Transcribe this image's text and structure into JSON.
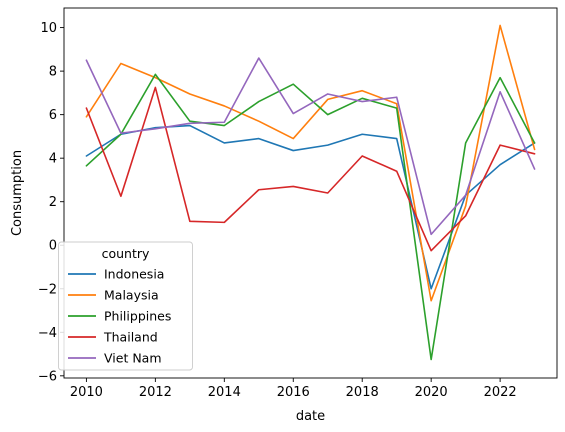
{
  "chart_data": {
    "type": "line",
    "xlabel": "date",
    "ylabel": "Consumption",
    "xlim": [
      2009.35,
      2023.65
    ],
    "ylim": [
      -6.1,
      10.9
    ],
    "x_ticks": [
      2010,
      2012,
      2014,
      2016,
      2018,
      2020,
      2022
    ],
    "y_ticks": [
      -6,
      -4,
      -2,
      0,
      2,
      4,
      6,
      8,
      10
    ],
    "grid": false,
    "legend": {
      "title": "country",
      "placement": "lower-left"
    },
    "x": [
      2010,
      2011,
      2012,
      2013,
      2014,
      2015,
      2016,
      2017,
      2018,
      2019,
      2020,
      2021,
      2022,
      2023
    ],
    "series": [
      {
        "name": "Indonesia",
        "color": "#1f77b4",
        "values": [
          4.1,
          5.1,
          5.4,
          5.5,
          4.7,
          4.9,
          4.35,
          4.6,
          5.1,
          4.9,
          -2.0,
          2.3,
          3.7,
          4.7
        ]
      },
      {
        "name": "Malaysia",
        "color": "#ff7f0e",
        "values": [
          5.9,
          8.35,
          7.7,
          6.95,
          6.4,
          5.7,
          4.9,
          6.7,
          7.1,
          6.5,
          -2.55,
          1.8,
          10.1,
          4.4
        ]
      },
      {
        "name": "Philippines",
        "color": "#2ca02c",
        "values": [
          3.65,
          5.1,
          7.85,
          5.7,
          5.5,
          6.6,
          7.4,
          6.0,
          6.75,
          6.3,
          -5.25,
          4.7,
          7.7,
          4.7
        ]
      },
      {
        "name": "Thailand",
        "color": "#d62728",
        "values": [
          6.3,
          2.25,
          7.25,
          1.1,
          1.05,
          2.55,
          2.7,
          2.4,
          4.1,
          3.4,
          -0.25,
          1.35,
          4.6,
          4.2
        ]
      },
      {
        "name": "Viet Nam",
        "color": "#9467bd",
        "values": [
          8.5,
          5.15,
          5.35,
          5.6,
          5.65,
          8.6,
          6.05,
          6.95,
          6.6,
          6.8,
          0.5,
          2.3,
          7.05,
          3.5
        ]
      }
    ]
  }
}
